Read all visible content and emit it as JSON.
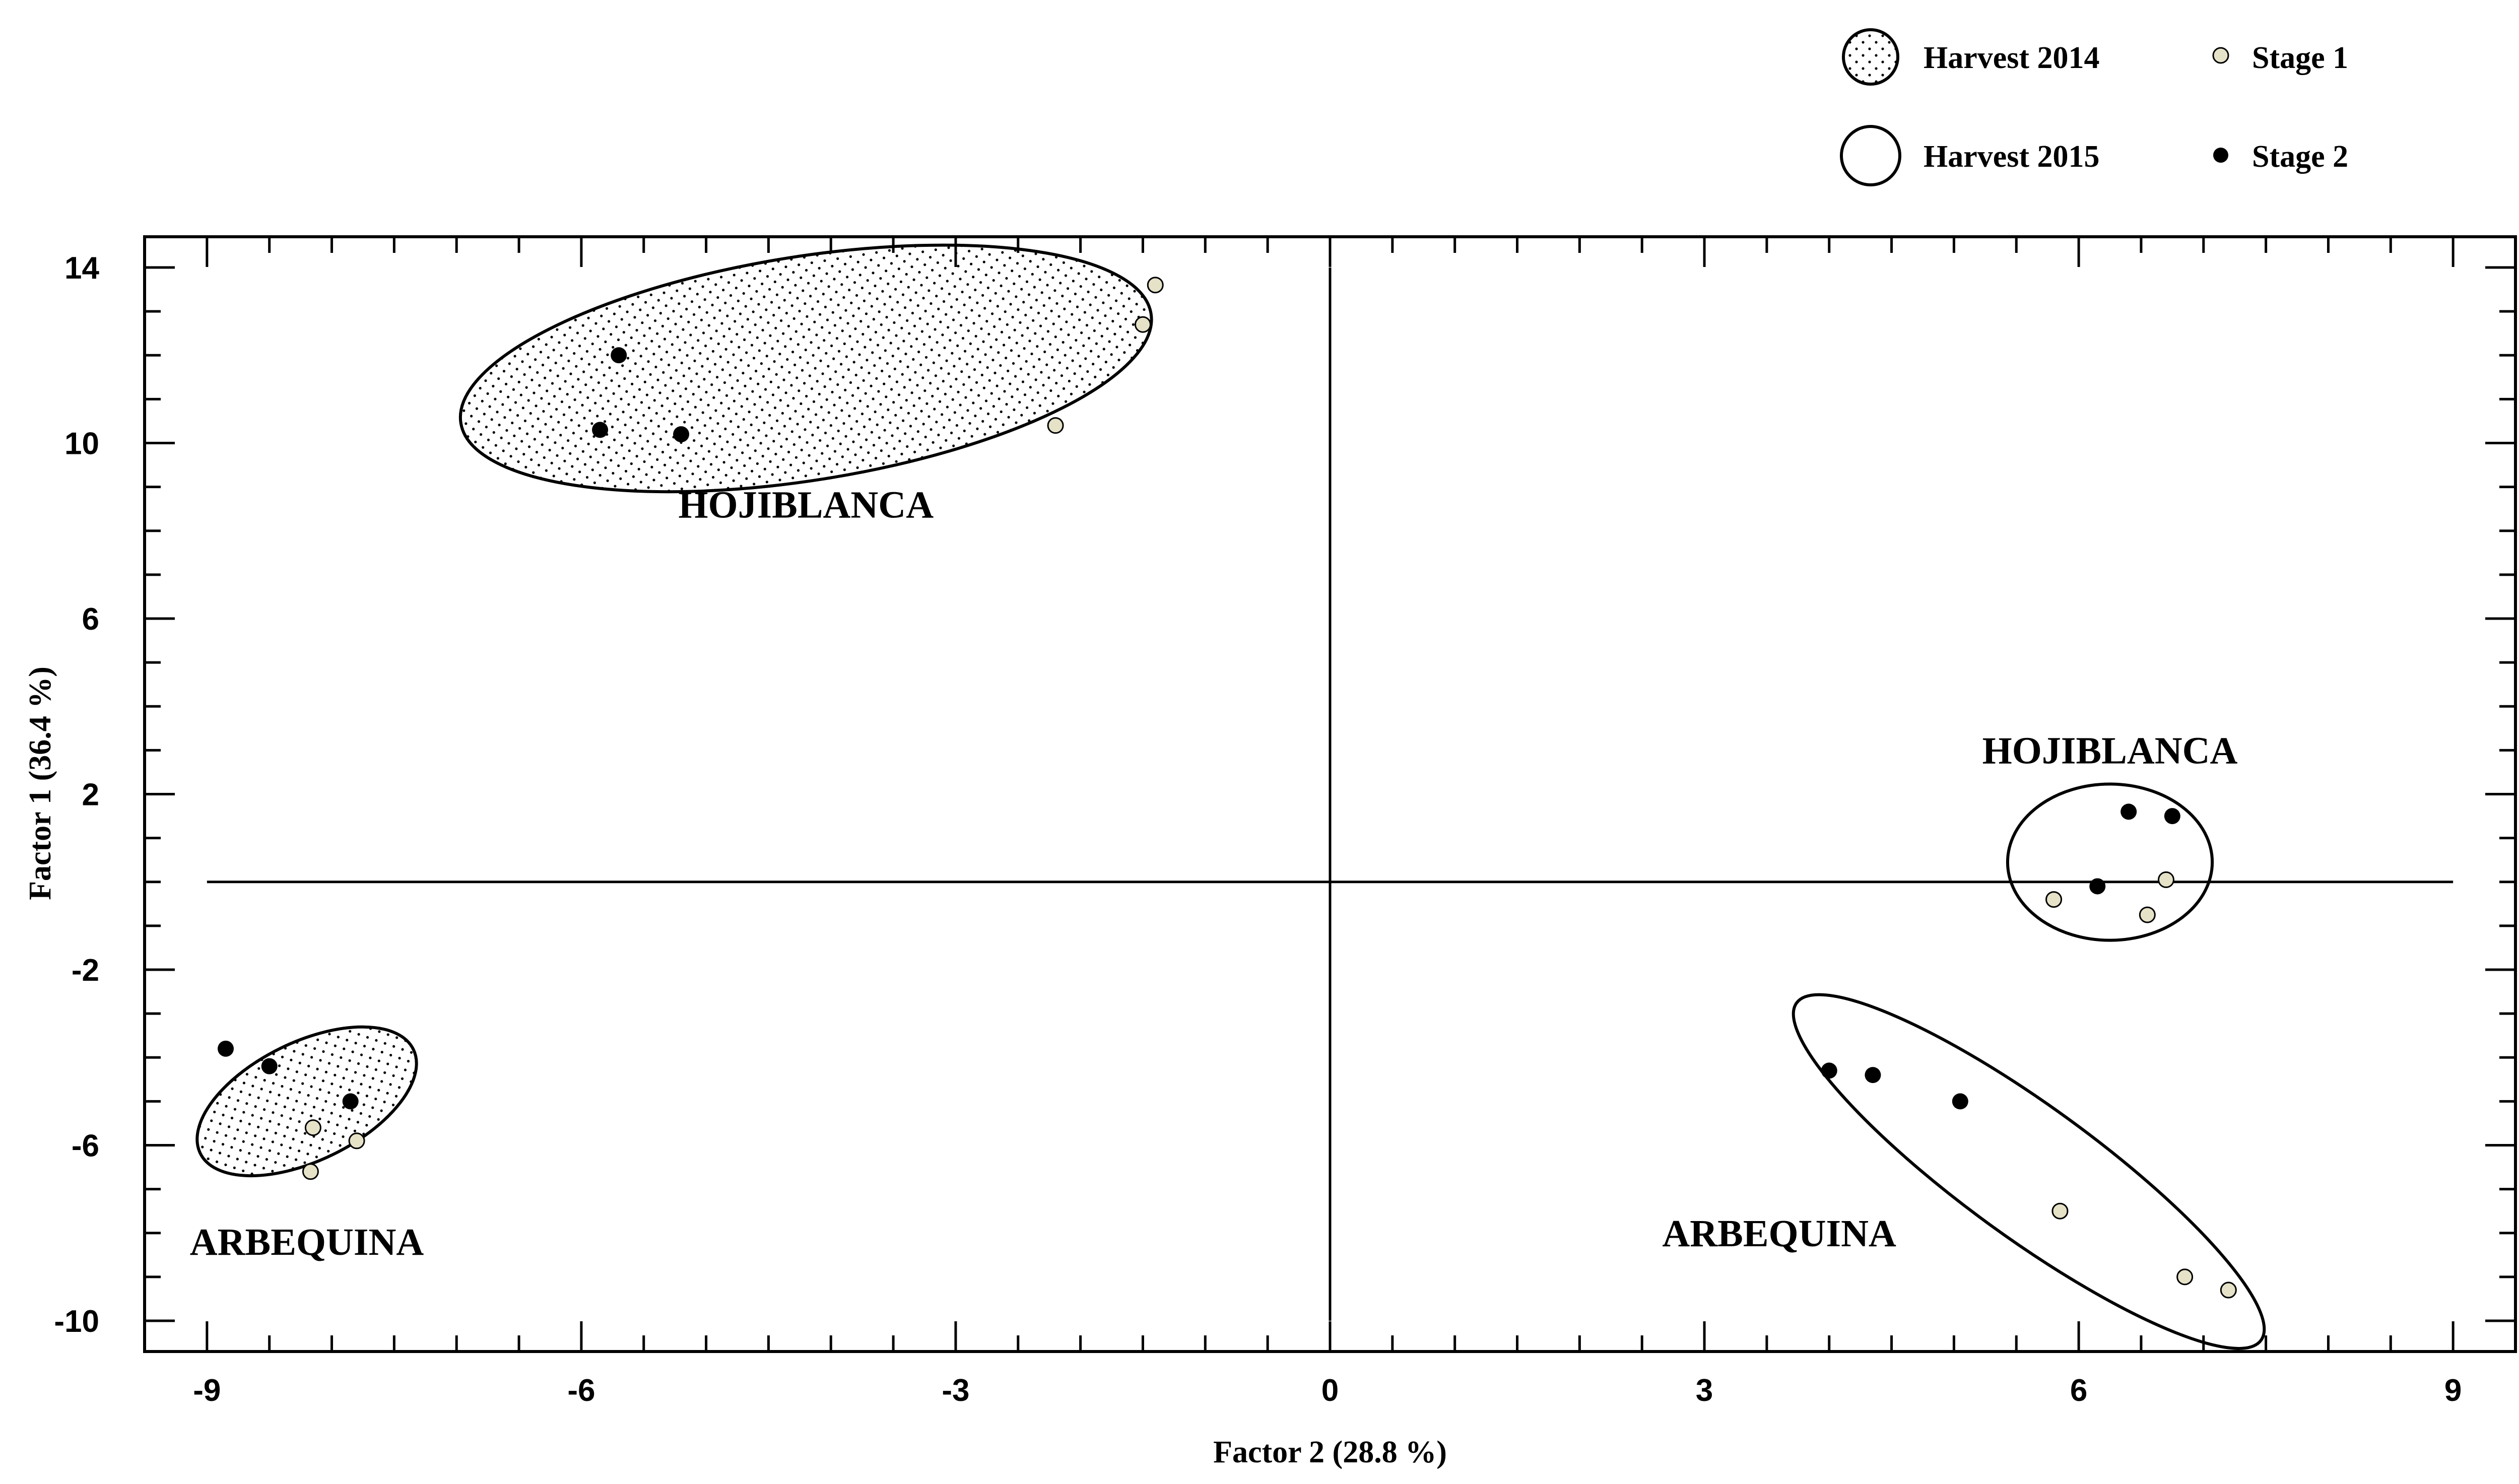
{
  "chart_data": {
    "type": "scatter",
    "xlabel": "Factor 2 (28.8 %)",
    "ylabel": "Factor 1 (36.4 %)",
    "xlim": [
      -9.5,
      9.5
    ],
    "ylim": [
      -10.7,
      14.7
    ],
    "xticks": [
      -9,
      -6,
      -3,
      0,
      3,
      6,
      9
    ],
    "yticks": [
      14,
      10,
      6,
      2,
      -2,
      -6,
      -10
    ],
    "grid": false,
    "legend_position": "top-right",
    "legend": {
      "harvest_2014": "Harvest 2014",
      "harvest_2015": "Harvest 2015",
      "stage_1": "Stage 1",
      "stage_2": "Stage 2"
    },
    "colors": {
      "stage_1": "#e6e2c8",
      "stage_2": "#000000",
      "outline": "#000000"
    },
    "groups": [
      {
        "label": "HOJIBLANCA",
        "harvest": "Harvest 2014",
        "ellipse": {
          "cx": -4.2,
          "cy": 11.7,
          "rx": 2.8,
          "ry": 2.55,
          "angle_deg": 9
        },
        "label_at": [
          -4.2,
          8.6
        ],
        "stage_1": [
          [
            -1.4,
            13.6
          ],
          [
            -1.5,
            12.7
          ],
          [
            -2.2,
            10.4
          ]
        ],
        "stage_2": [
          [
            -5.7,
            12.0
          ],
          [
            -5.85,
            10.3
          ],
          [
            -5.2,
            10.2
          ]
        ]
      },
      {
        "label": "ARBEQUINA",
        "harvest": "Harvest 2014",
        "ellipse": {
          "cx": -8.2,
          "cy": -5.0,
          "rx": 0.95,
          "ry": 1.35,
          "angle_deg": 26
        },
        "label_at": [
          -8.2,
          -8.2
        ],
        "stage_1": [
          [
            -8.15,
            -5.6
          ],
          [
            -7.8,
            -5.9
          ],
          [
            -8.17,
            -6.6
          ]
        ],
        "stage_2": [
          [
            -8.85,
            -3.8
          ],
          [
            -8.5,
            -4.2
          ],
          [
            -7.85,
            -5.0
          ]
        ]
      },
      {
        "label": "HOJIBLANCA",
        "harvest": "Harvest 2015",
        "ellipse": {
          "cx": 6.25,
          "cy": 0.45,
          "rx": 0.82,
          "ry": 1.78,
          "angle_deg": 0
        },
        "label_at": [
          6.25,
          3.0
        ],
        "stage_1": [
          [
            6.7,
            0.05
          ],
          [
            5.8,
            -0.4
          ],
          [
            6.55,
            -0.75
          ]
        ],
        "stage_2": [
          [
            6.4,
            1.6
          ],
          [
            6.75,
            1.5
          ],
          [
            6.15,
            -0.1
          ]
        ]
      },
      {
        "label": "ARBEQUINA",
        "harvest": "Harvest 2015",
        "ellipse": {
          "cx": 5.6,
          "cy": -6.6,
          "rx": 2.3,
          "ry": 1.5,
          "angle_deg": -36
        },
        "label_at": [
          3.6,
          -8.0
        ],
        "stage_1": [
          [
            5.85,
            -7.5
          ],
          [
            6.85,
            -9.0
          ],
          [
            7.2,
            -9.3
          ]
        ],
        "stage_2": [
          [
            4.0,
            -4.3
          ],
          [
            4.35,
            -4.4
          ],
          [
            5.05,
            -5.0
          ]
        ]
      }
    ]
  }
}
